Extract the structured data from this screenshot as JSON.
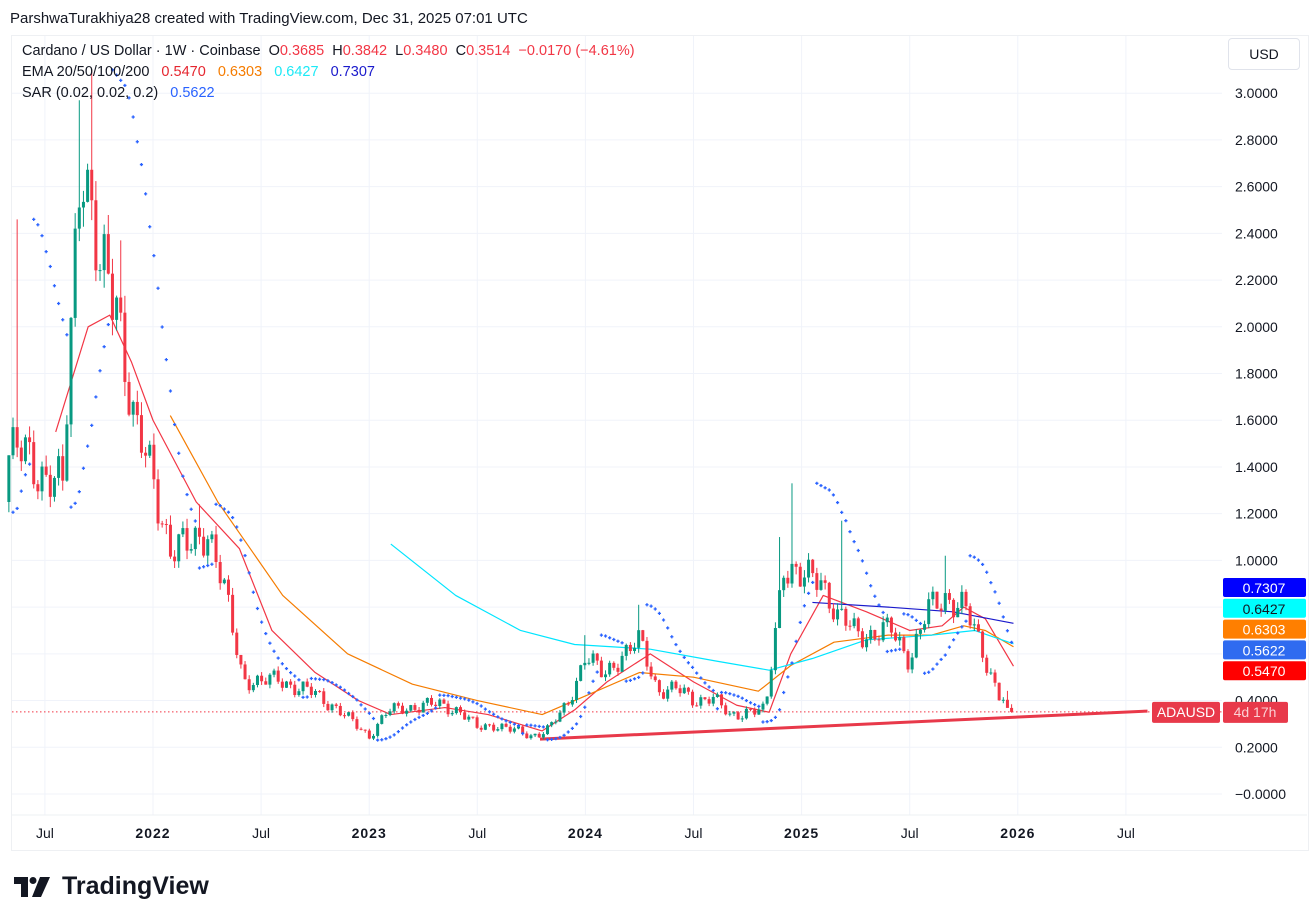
{
  "credit": "ParshwaTurakhiya28 created with TradingView.com, Dec 31, 2025 07:01 UTC",
  "legend": {
    "symbol": "Cardano / US Dollar · 1W · Coinbase",
    "o_label": "O",
    "o": "0.3685",
    "h_label": "H",
    "h": "0.3842",
    "l_label": "L",
    "l": "0.3480",
    "c_label": "C",
    "c": "0.3514",
    "change": "−0.0170 (−4.61%)",
    "ema_label": "EMA 20/50/100/200",
    "ema_values": [
      "0.5470",
      "0.6303",
      "0.6427",
      "0.7307"
    ],
    "sar_label": "SAR (0.02, 0.02, 0.2)",
    "sar_value": "0.5622"
  },
  "currency_button": "USD",
  "logo_text": "TradingView",
  "colors": {
    "up": "#089981",
    "down": "#f23645",
    "ema20": "#f23645",
    "ema50": "#f57c00",
    "ema100": "#00e5ff",
    "ema200": "#1a1acc",
    "sar": "#2962ff",
    "trendline": "#e8394a",
    "quote_red": "#f23645"
  },
  "chart_data": {
    "type": "candlestick",
    "symbol": "ADAUSD",
    "interval": "1W",
    "ylim": [
      -0.05,
      3.1
    ],
    "yticks": [
      "3.0000",
      "2.8000",
      "2.6000",
      "2.4000",
      "2.2000",
      "2.0000",
      "1.8000",
      "1.6000",
      "1.4000",
      "1.2000",
      "1.0000",
      "0.4000",
      "0.2000",
      "−0.0000"
    ],
    "xticks": [
      {
        "label": "Jul",
        "date": 2021.5,
        "bold": false
      },
      {
        "label": "2022",
        "date": 2022.0,
        "bold": true
      },
      {
        "label": "Jul",
        "date": 2022.5,
        "bold": false
      },
      {
        "label": "2023",
        "date": 2023.0,
        "bold": true
      },
      {
        "label": "Jul",
        "date": 2023.5,
        "bold": false
      },
      {
        "label": "2024",
        "date": 2024.0,
        "bold": true
      },
      {
        "label": "Jul",
        "date": 2024.5,
        "bold": false
      },
      {
        "label": "2025",
        "date": 2025.0,
        "bold": true
      },
      {
        "label": "Jul",
        "date": 2025.5,
        "bold": false
      },
      {
        "label": "2026",
        "date": 2026.0,
        "bold": true
      },
      {
        "label": "Jul",
        "date": 2026.5,
        "bold": false
      }
    ],
    "monthly_closes": [
      [
        "2021-05",
        1.45,
        2.46
      ],
      [
        "2021-06",
        1.37
      ],
      [
        "2021-07",
        1.3
      ],
      [
        "2021-08",
        2.85,
        2.97
      ],
      [
        "2021-09",
        2.2,
        3.1
      ],
      [
        "2021-10",
        2.15
      ],
      [
        "2021-11",
        1.55,
        2.37
      ],
      [
        "2021-12",
        1.35
      ],
      [
        "2022-01",
        1.05
      ],
      [
        "2022-02",
        1.05
      ],
      [
        "2022-03",
        1.15,
        1.24
      ],
      [
        "2022-04",
        0.85
      ],
      [
        "2022-05",
        0.5
      ],
      [
        "2022-06",
        0.47
      ],
      [
        "2022-07",
        0.5
      ],
      [
        "2022-08",
        0.45
      ],
      [
        "2022-09",
        0.43
      ],
      [
        "2022-10",
        0.38
      ],
      [
        "2022-11",
        0.31
      ],
      [
        "2022-12",
        0.25
      ],
      [
        "2023-01",
        0.35
      ],
      [
        "2023-02",
        0.37
      ],
      [
        "2023-03",
        0.38
      ],
      [
        "2023-04",
        0.38
      ],
      [
        "2023-05",
        0.36
      ],
      [
        "2023-06",
        0.28
      ],
      [
        "2023-07",
        0.3
      ],
      [
        "2023-08",
        0.27
      ],
      [
        "2023-09",
        0.25
      ],
      [
        "2023-10",
        0.28
      ],
      [
        "2023-11",
        0.38
      ],
      [
        "2023-12",
        0.6,
        0.68
      ],
      [
        "2024-01",
        0.5
      ],
      [
        "2024-02",
        0.6
      ],
      [
        "2024-03",
        0.65,
        0.81
      ],
      [
        "2024-04",
        0.45
      ],
      [
        "2024-05",
        0.45
      ],
      [
        "2024-06",
        0.4
      ],
      [
        "2024-07",
        0.42
      ],
      [
        "2024-08",
        0.33
      ],
      [
        "2024-09",
        0.36
      ],
      [
        "2024-10",
        0.35
      ],
      [
        "2024-11",
        1.0,
        1.1
      ],
      [
        "2024-12",
        0.9,
        1.33
      ],
      [
        "2025-01",
        0.95
      ],
      [
        "2025-02",
        0.75
      ],
      [
        "2025-03",
        0.7,
        1.17
      ],
      [
        "2025-04",
        0.68
      ],
      [
        "2025-05",
        0.7
      ],
      [
        "2025-06",
        0.58
      ],
      [
        "2025-07",
        0.78
      ],
      [
        "2025-08",
        0.85,
        1.02
      ],
      [
        "2025-09",
        0.8
      ],
      [
        "2025-10",
        0.62
      ],
      [
        "2025-11",
        0.42
      ],
      [
        "2025-12",
        0.3514
      ]
    ],
    "last_candle": {
      "o": 0.3685,
      "h": 0.3842,
      "l": 0.348,
      "c": 0.3514
    },
    "ema": [
      {
        "period": 20,
        "value": "0.5470",
        "points": [
          [
            2021.55,
            1.55
          ],
          [
            2021.7,
            2.0
          ],
          [
            2021.8,
            2.05
          ],
          [
            2021.9,
            1.85
          ],
          [
            2022.0,
            1.6
          ],
          [
            2022.2,
            1.25
          ],
          [
            2022.4,
            1.05
          ],
          [
            2022.55,
            0.7
          ],
          [
            2022.75,
            0.52
          ],
          [
            2022.95,
            0.4
          ],
          [
            2023.1,
            0.34
          ],
          [
            2023.35,
            0.37
          ],
          [
            2023.55,
            0.34
          ],
          [
            2023.8,
            0.27
          ],
          [
            2023.95,
            0.36
          ],
          [
            2024.1,
            0.48
          ],
          [
            2024.3,
            0.6
          ],
          [
            2024.5,
            0.48
          ],
          [
            2024.7,
            0.38
          ],
          [
            2024.85,
            0.35
          ],
          [
            2024.95,
            0.6
          ],
          [
            2025.1,
            0.85
          ],
          [
            2025.3,
            0.78
          ],
          [
            2025.5,
            0.7
          ],
          [
            2025.65,
            0.72
          ],
          [
            2025.75,
            0.8
          ],
          [
            2025.85,
            0.75
          ],
          [
            2025.98,
            0.547
          ]
        ]
      },
      {
        "period": 50,
        "value": "0.6303",
        "points": [
          [
            2022.08,
            1.62
          ],
          [
            2022.3,
            1.25
          ],
          [
            2022.6,
            0.85
          ],
          [
            2022.9,
            0.6
          ],
          [
            2023.2,
            0.47
          ],
          [
            2023.5,
            0.4
          ],
          [
            2023.8,
            0.34
          ],
          [
            2024.0,
            0.42
          ],
          [
            2024.25,
            0.52
          ],
          [
            2024.5,
            0.5
          ],
          [
            2024.8,
            0.44
          ],
          [
            2024.95,
            0.55
          ],
          [
            2025.15,
            0.65
          ],
          [
            2025.4,
            0.68
          ],
          [
            2025.6,
            0.68
          ],
          [
            2025.75,
            0.72
          ],
          [
            2025.85,
            0.7
          ],
          [
            2025.98,
            0.6303
          ]
        ]
      },
      {
        "period": 100,
        "value": "0.6427",
        "points": [
          [
            2023.1,
            1.07
          ],
          [
            2023.4,
            0.85
          ],
          [
            2023.7,
            0.7
          ],
          [
            2023.95,
            0.64
          ],
          [
            2024.3,
            0.62
          ],
          [
            2024.6,
            0.57
          ],
          [
            2024.85,
            0.53
          ],
          [
            2025.05,
            0.58
          ],
          [
            2025.3,
            0.66
          ],
          [
            2025.6,
            0.68
          ],
          [
            2025.8,
            0.7
          ],
          [
            2025.98,
            0.6427
          ]
        ]
      },
      {
        "period": 200,
        "value": "0.7307",
        "points": [
          [
            2025.05,
            0.82
          ],
          [
            2025.4,
            0.8
          ],
          [
            2025.7,
            0.78
          ],
          [
            2025.98,
            0.7307
          ]
        ]
      }
    ],
    "sar": {
      "start": 0.02,
      "increment": 0.02,
      "max": 0.2,
      "value": "0.5622"
    },
    "trendline": [
      [
        2023.79,
        0.235
      ],
      [
        2026.6,
        0.355
      ]
    ],
    "price_tag": {
      "symbol": "ADAUSD",
      "countdown": "4d 17h",
      "price": 0.3514
    },
    "axis_tags": [
      {
        "value": "0.7307",
        "color": "#0000ff",
        "text_color": "#ffffff",
        "price": 0.7307
      },
      {
        "value": "0.6427",
        "color": "#00ffff",
        "text_color": "#131722",
        "price": 0.6427
      },
      {
        "value": "0.6303",
        "color": "#ff7f00",
        "text_color": "#ffffff",
        "price": 0.6303
      },
      {
        "value": "0.5622",
        "color": "#2f6bf0",
        "text_color": "#ffffff",
        "price": 0.5622
      },
      {
        "value": "0.5470",
        "color": "#ff0000",
        "text_color": "#ffffff",
        "price": 0.547
      }
    ]
  }
}
